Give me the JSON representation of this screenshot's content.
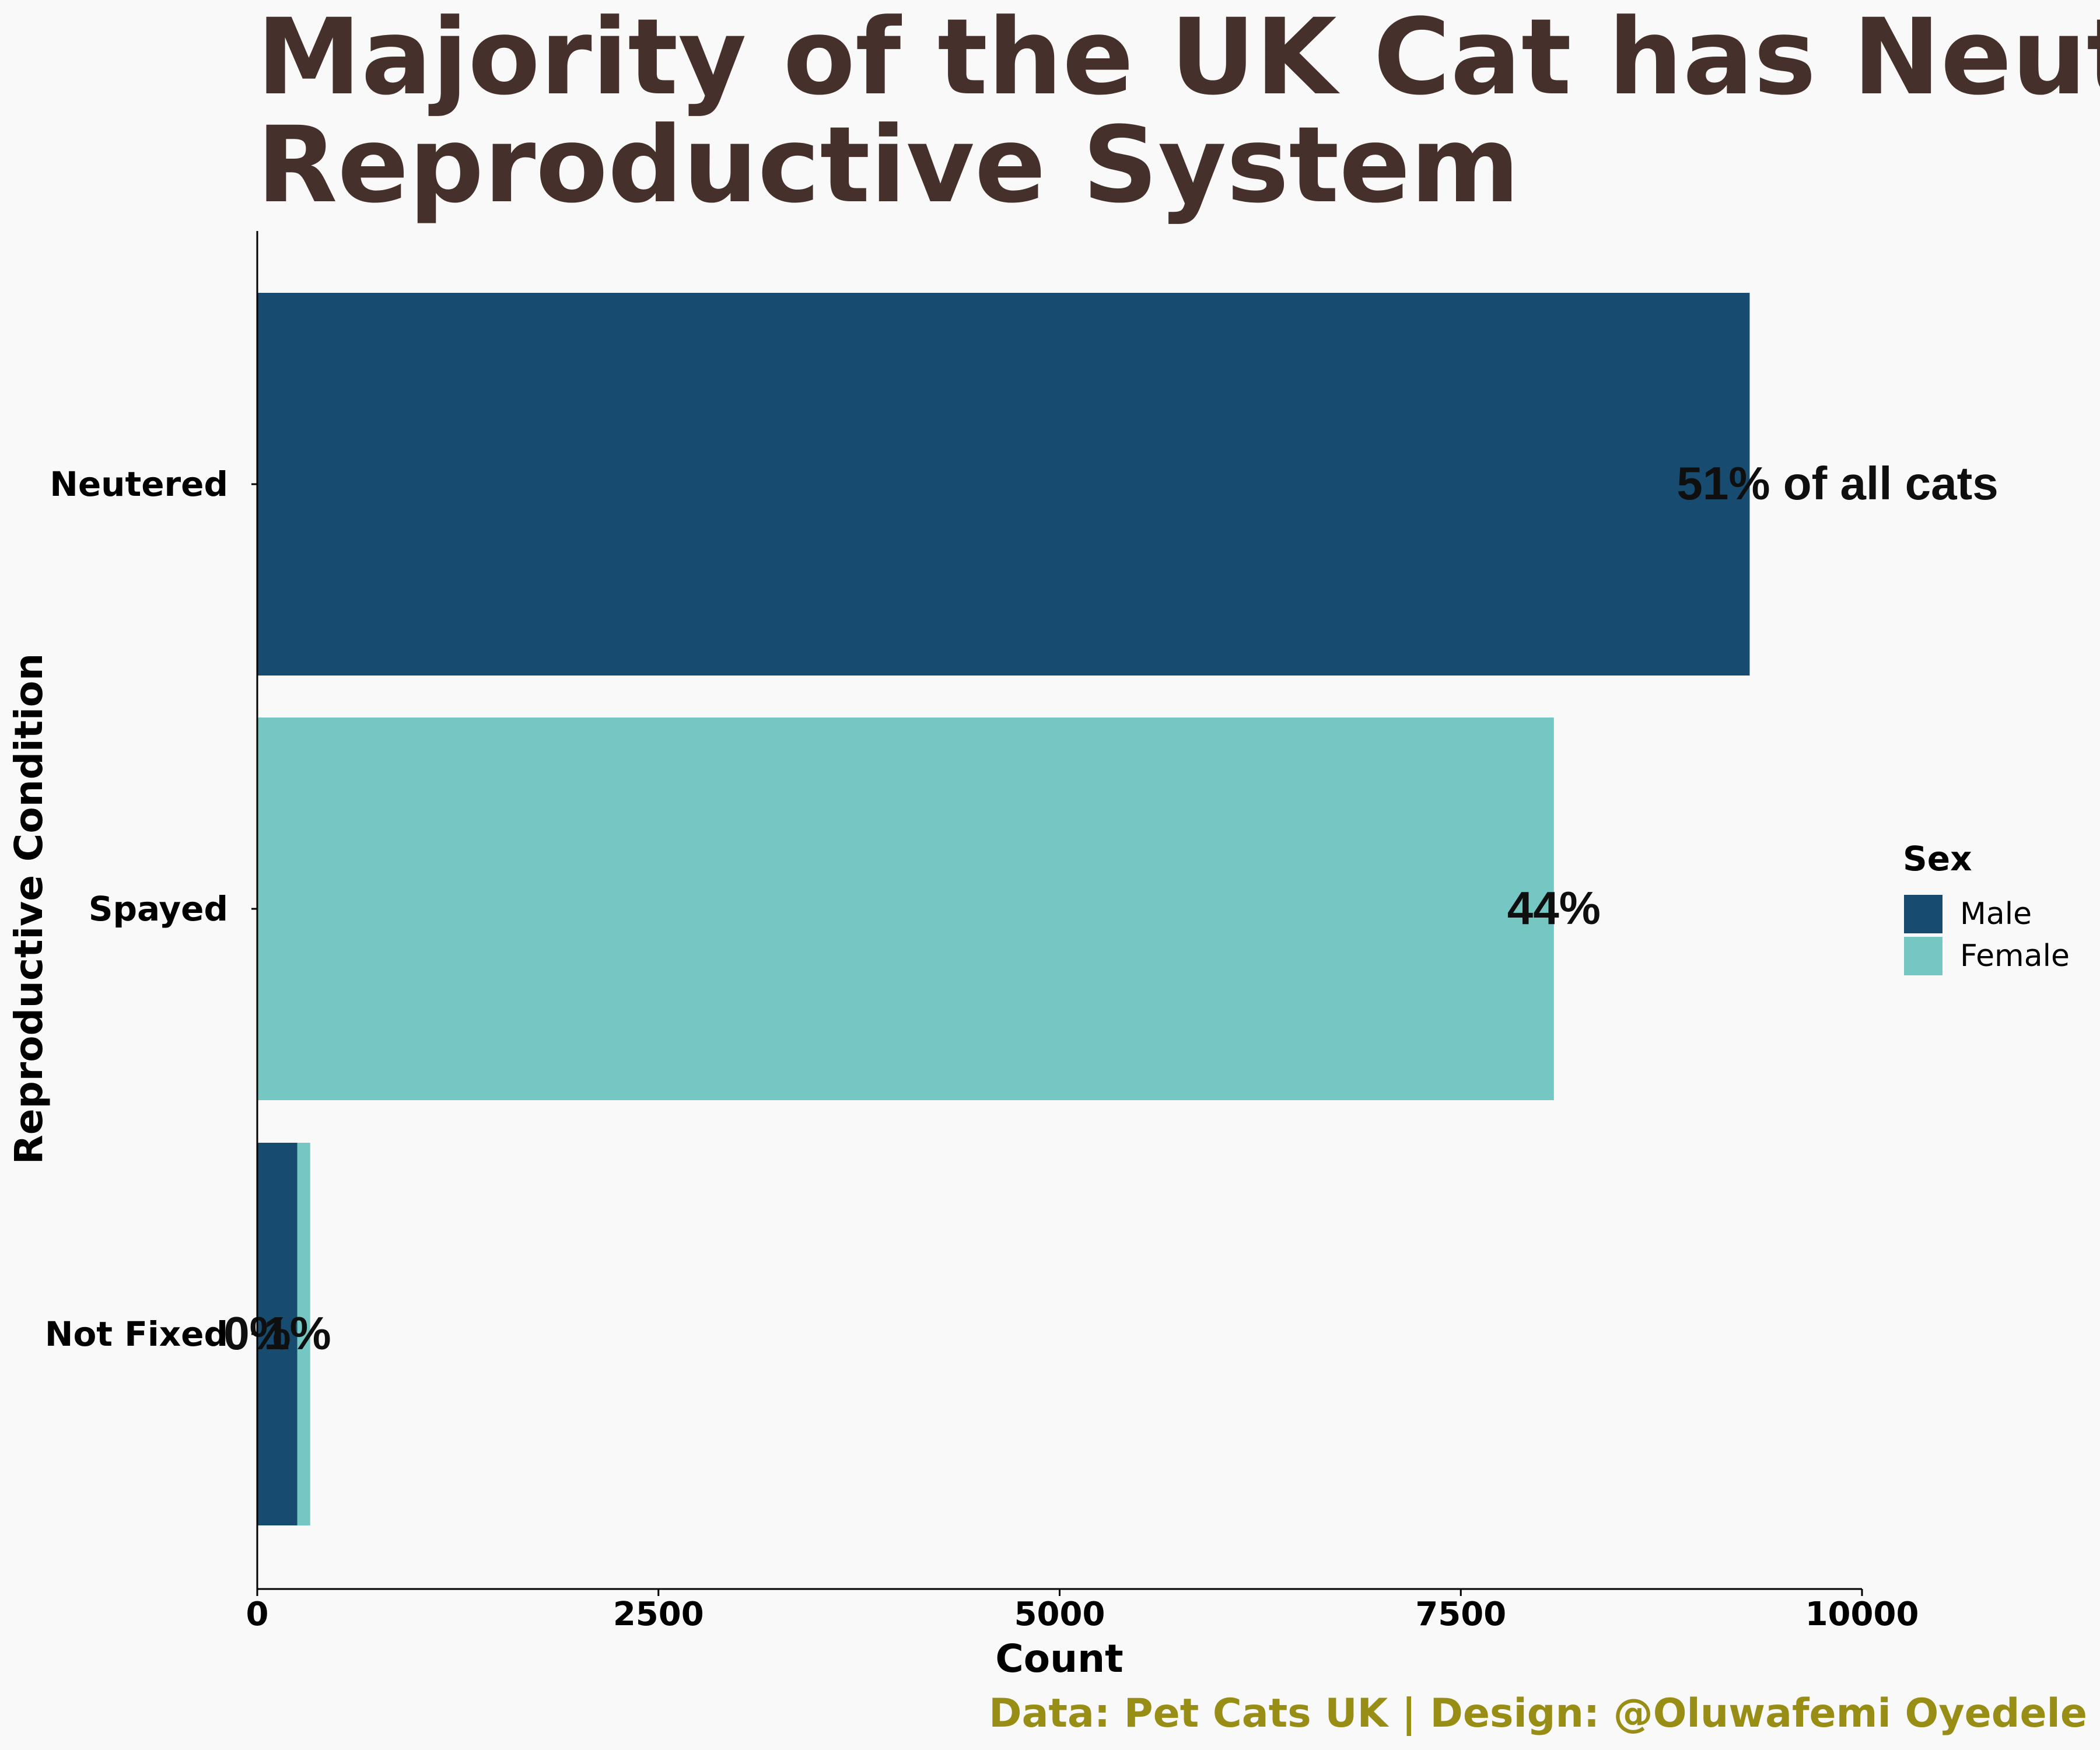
{
  "chart_data": {
    "type": "bar",
    "orientation": "horizontal",
    "stacked": true,
    "title": "Majority of the UK Cat has Neutered Reproductive System",
    "title_lines": [
      "Majority of the UK Cat has Neutered",
      "Reproductive System"
    ],
    "xlabel": "Count",
    "ylabel": "Reproductive Condition",
    "xlim": [
      0,
      10000
    ],
    "x_ticks": [
      "0",
      "2500",
      "5000",
      "7500",
      "10000"
    ],
    "categories": [
      "Neutered",
      "Spayed",
      "Not Fixed"
    ],
    "series": [
      {
        "name": "Male",
        "color": "#174b70",
        "values": [
          9300,
          0,
          250
        ]
      },
      {
        "name": "Female",
        "color": "#74c7c2",
        "values": [
          0,
          8080,
          80
        ]
      }
    ],
    "labels": [
      {
        "category": "Neutered",
        "text": "51% of all cats",
        "at": 9300
      },
      {
        "category": "Spayed",
        "text": "44%",
        "at": 8080
      },
      {
        "category": "Not Fixed",
        "text": "0%",
        "at": 0
      },
      {
        "category": "Not Fixed",
        "text": "1%",
        "at": 250
      }
    ],
    "legend": {
      "title": "Sex",
      "position": "right"
    },
    "caption": "Data: Pet Cats UK | Design: @Oluwafemi Oyedele",
    "grid": false,
    "colors": {
      "title": "#46302b",
      "caption": "#988e16",
      "background": "#f9f9f9"
    }
  }
}
